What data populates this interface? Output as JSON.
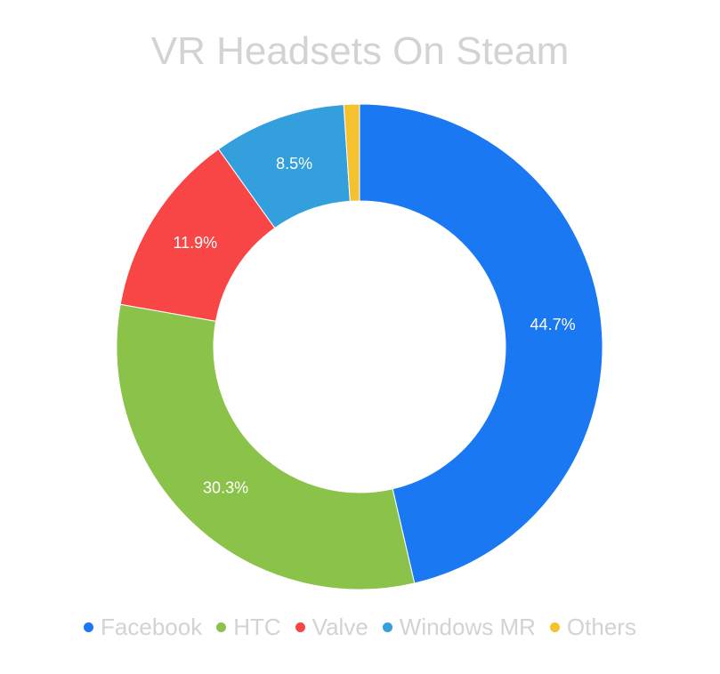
{
  "chart_data": {
    "type": "pie",
    "title": "VR Headsets On Steam",
    "donut": true,
    "legend_position": "bottom",
    "categories": [
      "Facebook",
      "HTC",
      "Valve",
      "Windows MR",
      "Others"
    ],
    "values": [
      44.7,
      30.3,
      11.9,
      8.5,
      1.0
    ],
    "data_labels": [
      "44.7%",
      "30.3%",
      "11.9%",
      "8.5%",
      ""
    ],
    "colors": [
      "#1a78f2",
      "#8bc34a",
      "#f84646",
      "#339fdc",
      "#f5c12e"
    ]
  }
}
